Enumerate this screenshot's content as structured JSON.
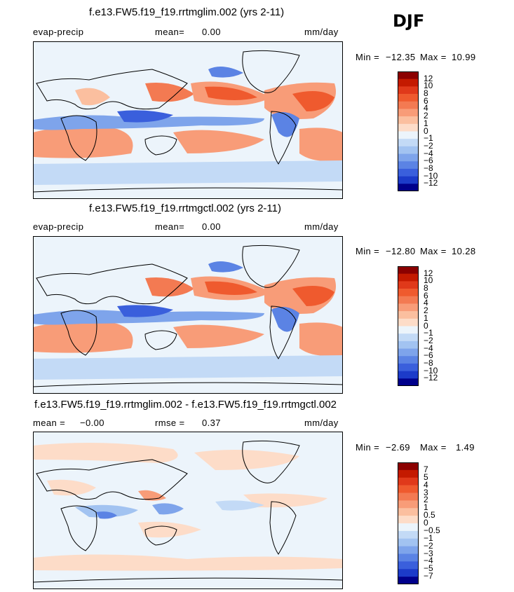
{
  "season": "DJF",
  "panels": [
    {
      "title": "f.e13.FW5.f19_f19.rrtmglim.002 (yrs 2-11)",
      "variable": "evap-precip",
      "stat_label": "mean=",
      "stat_value": "0.00",
      "units": "mm/day",
      "min_label": "Min =",
      "min_value": "−12.35",
      "max_label": "Max =",
      "max_value": "10.99",
      "colorbar_labels": [
        "12",
        "10",
        "8",
        "6",
        "4",
        "2",
        "1",
        "0",
        "−1",
        "−2",
        "−4",
        "−6",
        "−8",
        "−10",
        "−12"
      ],
      "colorbar_colors": [
        "#8b0000",
        "#c41a00",
        "#e0391a",
        "#ef5a2e",
        "#f37a52",
        "#f89c78",
        "#fbbf9f",
        "#fddcc8",
        "#ecf4fb",
        "#c3daf6",
        "#a2c3f1",
        "#7ea4eb",
        "#5b83e4",
        "#3a5fdc",
        "#1c3bc9",
        "#00008b"
      ]
    },
    {
      "title": "f.e13.FW5.f19_f19.rrtmgctl.002 (yrs 2-11)",
      "variable": "evap-precip",
      "stat_label": "mean=",
      "stat_value": "0.00",
      "units": "mm/day",
      "min_label": "Min =",
      "min_value": "−12.80",
      "max_label": "Max =",
      "max_value": "10.28",
      "colorbar_labels": [
        "12",
        "10",
        "8",
        "6",
        "4",
        "2",
        "1",
        "0",
        "−1",
        "−2",
        "−4",
        "−6",
        "−8",
        "−10",
        "−12"
      ],
      "colorbar_colors": [
        "#8b0000",
        "#c41a00",
        "#e0391a",
        "#ef5a2e",
        "#f37a52",
        "#f89c78",
        "#fbbf9f",
        "#fddcc8",
        "#ecf4fb",
        "#c3daf6",
        "#a2c3f1",
        "#7ea4eb",
        "#5b83e4",
        "#3a5fdc",
        "#1c3bc9",
        "#00008b"
      ]
    },
    {
      "title": "f.e13.FW5.f19_f19.rrtmglim.002 - f.e13.FW5.f19_f19.rrtmgctl.002",
      "stat_label": "mean =",
      "stat_value": "−0.00",
      "stat2_label": "rmse =",
      "stat2_value": "0.37",
      "units": "mm/day",
      "min_label": "Min =",
      "min_value": "−2.69",
      "max_label": "Max =",
      "max_value": "1.49",
      "colorbar_labels": [
        "7",
        "5",
        "4",
        "3",
        "2",
        "1",
        "0.5",
        "0",
        "−0.5",
        "−1",
        "−2",
        "−3",
        "−4",
        "−5",
        "−7"
      ],
      "colorbar_colors": [
        "#8b0000",
        "#c41a00",
        "#e0391a",
        "#ef5a2e",
        "#f37a52",
        "#f89c78",
        "#fbbf9f",
        "#fddcc8",
        "#ecf4fb",
        "#c3daf6",
        "#a2c3f1",
        "#7ea4eb",
        "#5b83e4",
        "#3a5fdc",
        "#1c3bc9",
        "#00008b"
      ]
    }
  ],
  "chart_data": [
    {
      "type": "heatmap",
      "title": "f.e13.FW5.f19_f19.rrtmglim.002 (yrs 2-11)",
      "variable": "evap-precip",
      "units": "mm/day",
      "season": "DJF",
      "mean": 0.0,
      "min": -12.35,
      "max": 10.99,
      "contour_levels": [
        -12,
        -10,
        -8,
        -6,
        -4,
        -2,
        -1,
        0,
        1,
        2,
        4,
        6,
        8,
        10,
        12
      ]
    },
    {
      "type": "heatmap",
      "title": "f.e13.FW5.f19_f19.rrtmgctl.002 (yrs 2-11)",
      "variable": "evap-precip",
      "units": "mm/day",
      "season": "DJF",
      "mean": 0.0,
      "min": -12.8,
      "max": 10.28,
      "contour_levels": [
        -12,
        -10,
        -8,
        -6,
        -4,
        -2,
        -1,
        0,
        1,
        2,
        4,
        6,
        8,
        10,
        12
      ]
    },
    {
      "type": "heatmap",
      "title": "f.e13.FW5.f19_f19.rrtmglim.002 - f.e13.FW5.f19_f19.rrtmgctl.002",
      "units": "mm/day",
      "season": "DJF",
      "mean": -0.0,
      "rmse": 0.37,
      "min": -2.69,
      "max": 1.49,
      "contour_levels": [
        -7,
        -5,
        -4,
        -3,
        -2,
        -1,
        -0.5,
        0,
        0.5,
        1,
        2,
        3,
        4,
        5,
        7
      ]
    }
  ]
}
